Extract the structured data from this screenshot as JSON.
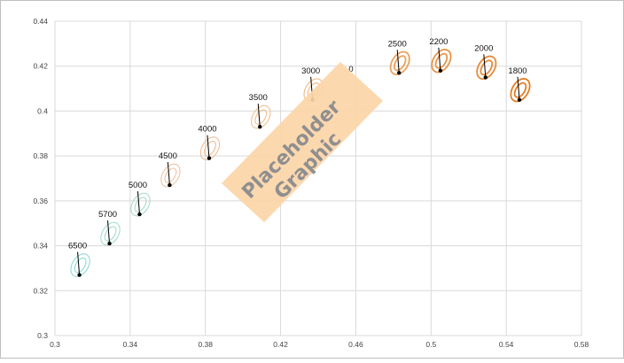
{
  "colors": {
    "background": "#ffffff",
    "grid": "#d9d9d9",
    "point": "#000000",
    "placeholder_fill": "#fcd5a8",
    "placeholder_text": "#8f8f8f"
  },
  "placeholder": {
    "line1": "Placeholder",
    "line2": "Graphic"
  },
  "chart_data": {
    "type": "scatter",
    "title": "",
    "xlabel": "",
    "ylabel": "",
    "xlim": [
      0.3,
      0.58
    ],
    "ylim": [
      0.3,
      0.44
    ],
    "x_ticks": [
      "0.3",
      "0.34",
      "0.38",
      "0.42",
      "0.46",
      "0.5",
      "0.54",
      "0.58"
    ],
    "y_ticks": [
      "0.3",
      "0.32",
      "0.34",
      "0.36",
      "0.38",
      "0.4",
      "0.42",
      "0.44"
    ],
    "grid": true,
    "legend": "none",
    "points": [
      {
        "label": "6500",
        "x": 0.313,
        "y": 0.327,
        "color": "#8fdad6"
      },
      {
        "label": "5700",
        "x": 0.329,
        "y": 0.341,
        "color": "#a3ddd0"
      },
      {
        "label": "5000",
        "x": 0.345,
        "y": 0.354,
        "color": "#a9dccd"
      },
      {
        "label": "4500",
        "x": 0.361,
        "y": 0.367,
        "color": "#f2c3a1"
      },
      {
        "label": "4000",
        "x": 0.382,
        "y": 0.379,
        "color": "#f0bd96"
      },
      {
        "label": "3500",
        "x": 0.409,
        "y": 0.393,
        "color": "#f2c08f"
      },
      {
        "label": "3000",
        "x": 0.437,
        "y": 0.405,
        "color": "#f1b987"
      },
      {
        "label": "2500",
        "x": 0.483,
        "y": 0.417,
        "color": "#eba35e"
      },
      {
        "label": "2200",
        "x": 0.505,
        "y": 0.418,
        "color": "#e8964a"
      },
      {
        "label": "2000",
        "x": 0.529,
        "y": 0.415,
        "color": "#e58b39"
      },
      {
        "label": "1800",
        "x": 0.547,
        "y": 0.405,
        "color": "#e27f27"
      }
    ],
    "partial_label": "0"
  }
}
